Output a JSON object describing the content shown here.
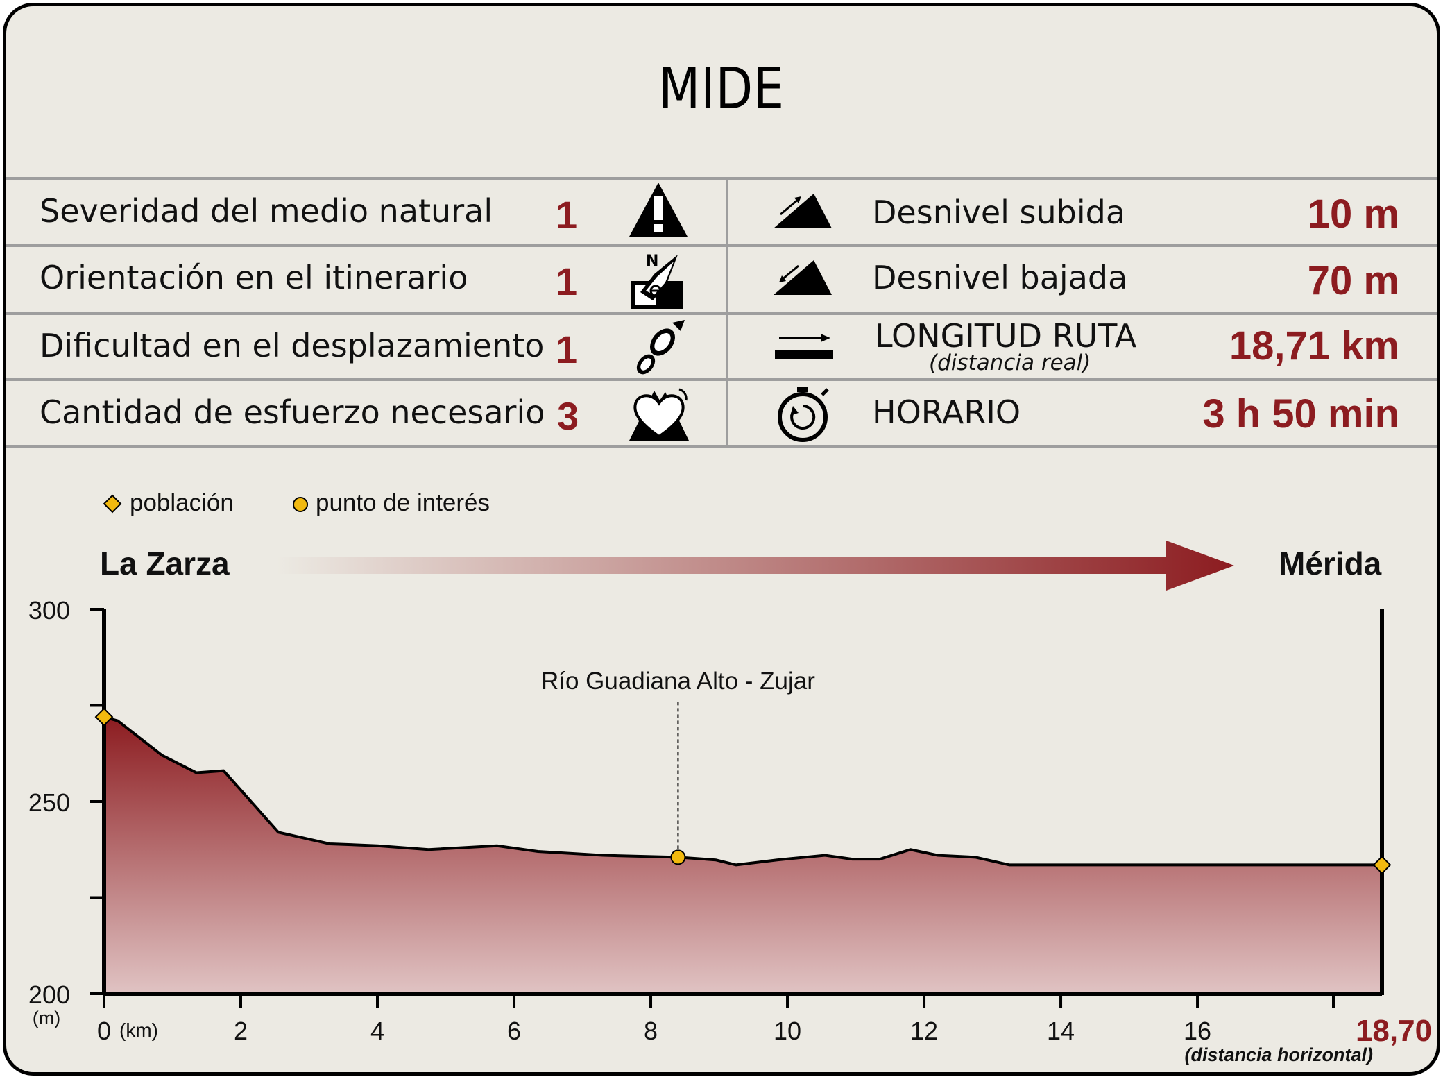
{
  "title": "MIDE",
  "mide": {
    "rows": [
      {
        "label": "Severidad del medio natural",
        "value": "1",
        "icon": "warning-mountain-icon"
      },
      {
        "label": "Orientación en el itinerario",
        "value": "1",
        "icon": "compass-map-icon"
      },
      {
        "label": "Dificultad en el desplazamiento",
        "value": "1",
        "icon": "footprint-icon"
      },
      {
        "label": "Cantidad de esfuerzo necesario",
        "value": "3",
        "icon": "heart-mountain-icon"
      }
    ],
    "stats": [
      {
        "label": "Desnivel subida",
        "value": "10 m",
        "icon": "ascent-icon"
      },
      {
        "label": "Desnivel bajada",
        "value": "70 m",
        "icon": "descent-icon"
      },
      {
        "label": "LONGITUD RUTA",
        "sublabel": "(distancia real)",
        "value": "18,71 km",
        "icon": "length-icon"
      },
      {
        "label": "HORARIO",
        "value": "3 h 50 min",
        "icon": "stopwatch-icon"
      }
    ]
  },
  "legend": {
    "town": "población",
    "poi": "punto de interés"
  },
  "route": {
    "start": "La Zarza",
    "end": "Mérida"
  },
  "colors": {
    "accent": "#8c1c20",
    "marker_fill": "#f2b90f",
    "background": "#eceae3"
  },
  "chart_data": {
    "type": "area",
    "x": [
      0,
      0.2,
      0.85,
      1.35,
      1.75,
      2.55,
      3.3,
      4.0,
      4.75,
      5.75,
      6.35,
      7.3,
      8.4,
      8.95,
      9.25,
      9.85,
      10.55,
      10.95,
      11.35,
      11.8,
      12.2,
      12.75,
      13.25,
      13.8,
      18.7
    ],
    "y": [
      272,
      271,
      262,
      257.5,
      258,
      242,
      239,
      238.5,
      237.5,
      238.5,
      237,
      236,
      235.5,
      234.8,
      233.5,
      234.8,
      236,
      235,
      235,
      237.5,
      236,
      235.5,
      233.5,
      233.5,
      233.5
    ],
    "xlabel": "(km)",
    "ylabel": "(m)",
    "xlim": [
      0,
      18.7
    ],
    "ylim": [
      200,
      300
    ],
    "xticks": [
      0,
      2,
      4,
      6,
      8,
      10,
      12,
      14,
      16
    ],
    "xtick_labels": [
      "0",
      "2",
      "4",
      "6",
      "8",
      "10",
      "12",
      "14",
      "16"
    ],
    "yticks": [
      200,
      250,
      300
    ],
    "ytick_labels": [
      "200",
      "250",
      "300"
    ],
    "end_label": "18,70",
    "end_sublabel": "(distancia horizontal)",
    "markers": [
      {
        "kind": "town",
        "x": 0,
        "y": 272
      },
      {
        "kind": "poi",
        "x": 8.4,
        "y": 235.5,
        "label": "Río Guadiana Alto - Zujar"
      },
      {
        "kind": "town",
        "x": 18.7,
        "y": 233.5
      }
    ],
    "grid": false
  }
}
